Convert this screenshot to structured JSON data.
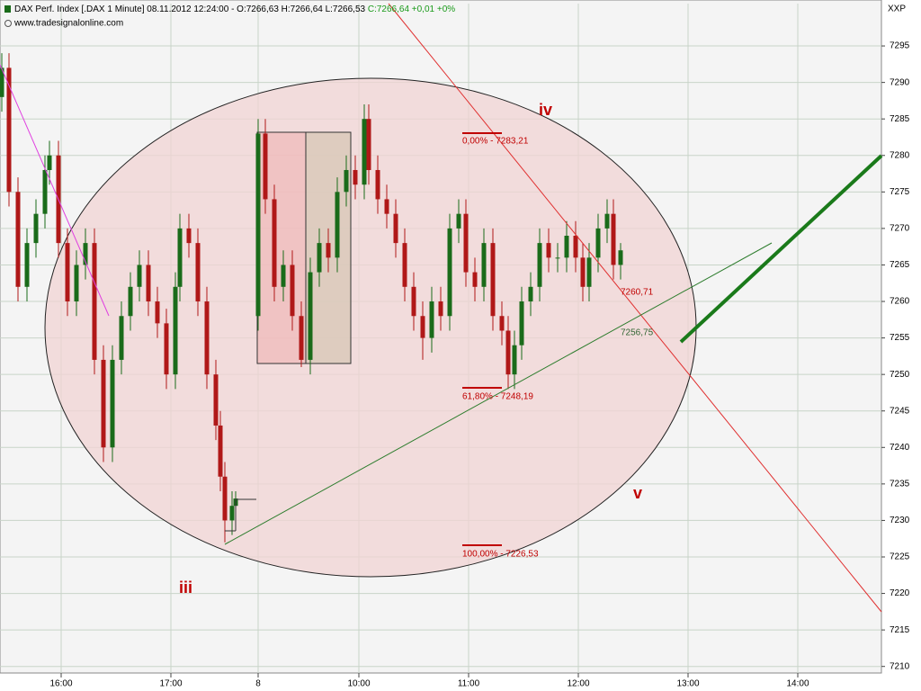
{
  "chart_data": {
    "type": "candlestick",
    "header": "DAX Perf. Index [.DAX  1 Minute] 08.11.2012 12:24:00 - O:7266,63 H:7266,64 L:7266,53",
    "header_close": "C:7266,64 +0,01 +0%",
    "source": "www.tradesignalonline.com",
    "symbol": "XXP",
    "annotations": {
      "fib_0": "0,00% - 7283,21",
      "fib_618": "61,80% - 7248,19",
      "fib_100": "100,00% - 7226,53",
      "price_1": "7260,71",
      "price_2": "7256,75",
      "wave_iii": "iii",
      "wave_iv": "iv",
      "wave_v": "v"
    },
    "x": [
      1,
      5,
      10,
      15,
      20,
      25,
      27.5,
      32.5,
      37.5,
      42.5,
      47.5,
      52.5,
      57.5,
      62.5,
      67.5,
      72.5,
      77.5,
      82.5,
      87.5,
      92.5,
      97.5,
      100,
      105,
      110,
      115,
      120,
      122.5,
      125,
      129,
      131,
      143.5,
      147.5,
      152.5,
      157.5,
      162.5,
      167.5,
      172.5,
      177.5,
      182.5,
      187.5,
      192.5,
      197.5,
      202.5,
      205,
      210,
      215,
      220,
      225,
      230,
      235,
      240,
      245,
      250,
      255,
      259,
      264,
      269,
      274,
      279,
      282.5,
      286,
      290,
      295,
      300,
      305,
      310,
      315,
      320,
      324,
      327.5,
      332.5,
      337.5,
      341,
      345
    ],
    "open": [
      7288,
      7292,
      7275,
      7262,
      7268,
      7272,
      7278,
      7280,
      7268,
      7260,
      7265,
      7268,
      7252,
      7240,
      7252,
      7258,
      7262,
      7265,
      7260,
      7257,
      7250,
      7262,
      7270,
      7268,
      7260,
      7250,
      7243,
      7236,
      7230,
      7232,
      7258,
      7283,
      7274,
      7262,
      7265,
      7258,
      7252,
      7264,
      7268,
      7266,
      7275,
      7278,
      7276,
      7285,
      7278,
      7274,
      7272,
      7268,
      7262,
      7258,
      7255,
      7260,
      7258,
      7270,
      7272,
      7264,
      7262,
      7268,
      7258,
      7256,
      7250,
      7254,
      7260,
      7262,
      7268,
      7266,
      7266,
      7269,
      7266,
      7262,
      7266,
      7270,
      7272,
      7265
    ],
    "high": [
      7294,
      7294,
      7277,
      7270,
      7274,
      7280,
      7282,
      7282,
      7270,
      7267,
      7270,
      7270,
      7254,
      7254,
      7260,
      7264,
      7267,
      7267,
      7262,
      7259,
      7264,
      7272,
      7272,
      7270,
      7262,
      7252,
      7245,
      7238,
      7234,
      7234,
      7285,
      7285,
      7276,
      7267,
      7267,
      7260,
      7266,
      7270,
      7270,
      7277,
      7280,
      7280,
      7287,
      7287,
      7280,
      7276,
      7274,
      7270,
      7264,
      7260,
      7262,
      7262,
      7272,
      7274,
      7274,
      7266,
      7270,
      7270,
      7260,
      7258,
      7256,
      7262,
      7264,
      7270,
      7270,
      7268,
      7271,
      7271,
      7268,
      7268,
      7272,
      7274,
      7274,
      7268
    ],
    "low": [
      7286,
      7273,
      7260,
      7260,
      7266,
      7270,
      7276,
      7266,
      7258,
      7258,
      7263,
      7250,
      7238,
      7238,
      7250,
      7256,
      7260,
      7258,
      7255,
      7248,
      7248,
      7260,
      7266,
      7258,
      7248,
      7241,
      7234,
      7227,
      7228,
      7231,
      7256,
      7272,
      7260,
      7260,
      7256,
      7251,
      7250,
      7262,
      7264,
      7264,
      7273,
      7274,
      7274,
      7276,
      7272,
      7270,
      7266,
      7260,
      7256,
      7252,
      7253,
      7256,
      7256,
      7268,
      7262,
      7260,
      7260,
      7256,
      7254,
      7248,
      7248,
      7252,
      7258,
      7260,
      7264,
      7264,
      7264,
      7264,
      7260,
      7260,
      7264,
      7268,
      7263,
      7263
    ],
    "close": [
      7292,
      7275,
      7262,
      7268,
      7272,
      7278,
      7280,
      7268,
      7260,
      7265,
      7268,
      7252,
      7240,
      7252,
      7258,
      7262,
      7265,
      7260,
      7257,
      7250,
      7262,
      7270,
      7268,
      7260,
      7250,
      7243,
      7236,
      7230,
      7232,
      7233,
      7283,
      7274,
      7262,
      7265,
      7258,
      7252,
      7264,
      7268,
      7266,
      7275,
      7278,
      7276,
      7285,
      7278,
      7274,
      7272,
      7268,
      7262,
      7258,
      7255,
      7260,
      7258,
      7270,
      7272,
      7264,
      7262,
      7268,
      7258,
      7256,
      7250,
      7254,
      7260,
      7262,
      7268,
      7266,
      7266,
      7269,
      7266,
      7262,
      7266,
      7270,
      7272,
      7265,
      7267
    ],
    "up_color": "#1a6b1a",
    "down_color": "#b01818",
    "xlim": [
      0,
      490
    ],
    "xticks": [
      {
        "value": 34,
        "label": "16:00"
      },
      {
        "value": 95,
        "label": "17:00"
      },
      {
        "value": 143.5,
        "label": "8"
      },
      {
        "value": 199.5,
        "label": "10:00"
      },
      {
        "value": 260.5,
        "label": "11:00"
      },
      {
        "value": 321.5,
        "label": "12:00"
      },
      {
        "value": 382.5,
        "label": "13:00"
      },
      {
        "value": 443.5,
        "label": "14:00"
      }
    ],
    "ylim": [
      7209.1,
      7300.8
    ],
    "yticks": [
      7210,
      7215,
      7220,
      7225,
      7230,
      7235,
      7240,
      7245,
      7250,
      7255,
      7260,
      7265,
      7270,
      7275,
      7280,
      7285,
      7290,
      7295
    ],
    "grid": true
  }
}
